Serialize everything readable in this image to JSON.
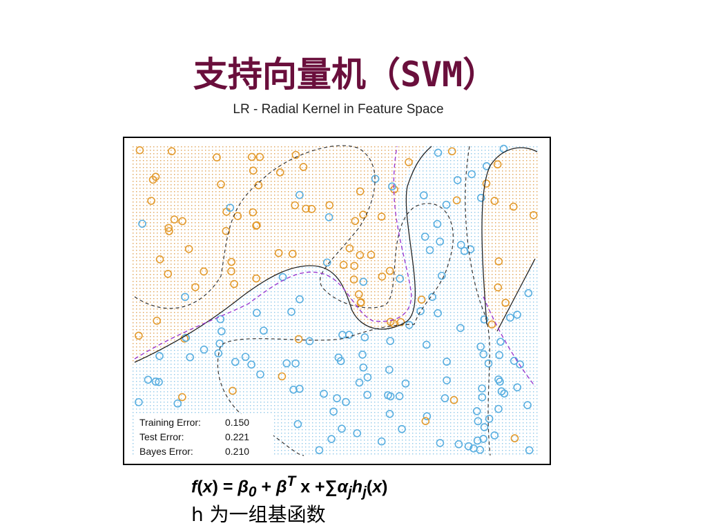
{
  "slide": {
    "title": "支持向量机（SVM）",
    "figure": {
      "title": "LR - Radial Kernel in Feature Space",
      "errors": [
        {
          "label": "Training Error:",
          "value": "0.150"
        },
        {
          "label": "Test Error:",
          "value": "0.221"
        },
        {
          "label": "Bayes Error:",
          "value": "0.210"
        }
      ]
    },
    "formula": [
      "f",
      "(",
      "x",
      ") = ",
      "β",
      "0",
      " + ",
      "β",
      "T",
      " x +∑",
      "α",
      "j",
      "h",
      "j",
      "(",
      "x",
      ")"
    ],
    "note": "h 为一组基函数"
  }
}
